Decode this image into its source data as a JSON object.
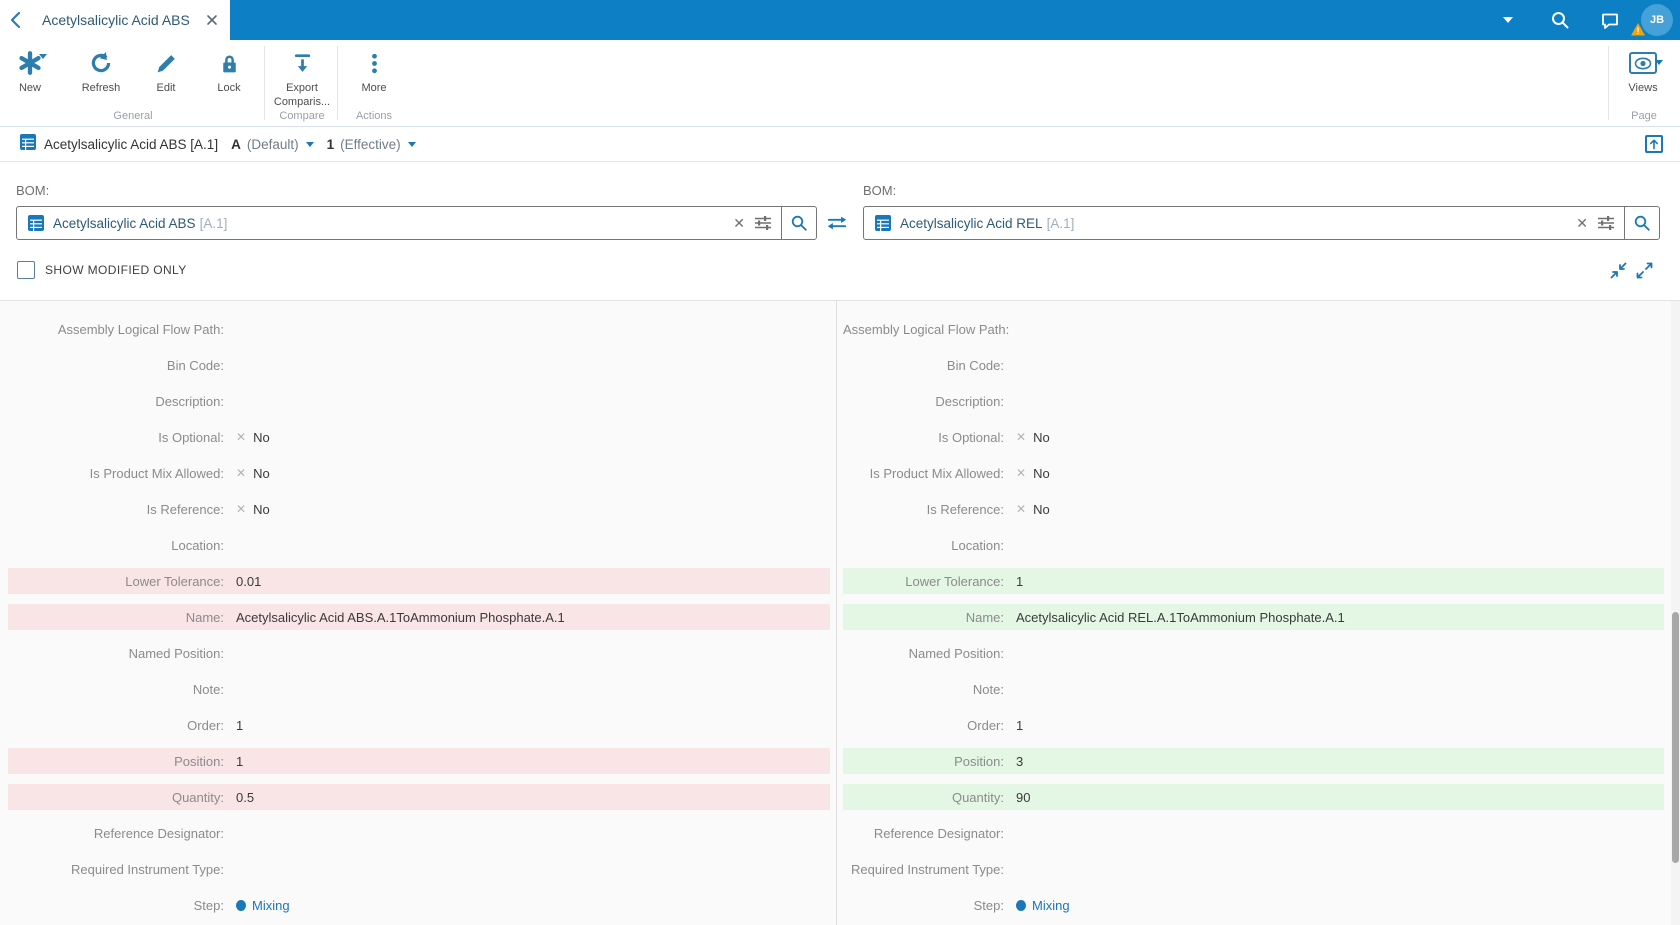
{
  "topbar": {
    "tab_title": "Acetylsalicylic Acid ABS",
    "avatar_initials": "JB",
    "warning_badge": "!"
  },
  "ribbon": {
    "buttons": {
      "new": "New",
      "refresh": "Refresh",
      "edit": "Edit",
      "lock": "Lock",
      "export_line1": "Export",
      "export_line2": "Comparis...",
      "more": "More",
      "views": "Views"
    },
    "groups": {
      "general": "General",
      "compare": "Compare",
      "actions": "Actions",
      "page": "Page"
    }
  },
  "breadcrumb": {
    "title": "Acetylsalicylic Acid ABS [A.1]",
    "revision": "A",
    "revision_note": "(Default)",
    "generation": "1",
    "generation_note": "(Effective)"
  },
  "bom": {
    "left_label": "BOM:",
    "right_label": "BOM:",
    "left_value": "Acetylsalicylic Acid ABS",
    "left_rev": "[A.1]",
    "right_value": "Acetylsalicylic Acid REL",
    "right_rev": "[A.1]"
  },
  "controls": {
    "show_modified_label": "SHOW MODIFIED ONLY"
  },
  "compare": {
    "rows": [
      {
        "label": "Assembly Logical Flow Path",
        "type": "text",
        "left": "",
        "right": "",
        "changed": false
      },
      {
        "label": "Bin Code",
        "type": "text",
        "left": "",
        "right": "",
        "changed": false
      },
      {
        "label": "Description",
        "type": "text",
        "left": "",
        "right": "",
        "changed": false
      },
      {
        "label": "Is Optional",
        "type": "bool",
        "left": "No",
        "right": "No",
        "changed": false
      },
      {
        "label": "Is Product Mix Allowed",
        "type": "bool",
        "left": "No",
        "right": "No",
        "changed": false
      },
      {
        "label": "Is Reference",
        "type": "bool",
        "left": "No",
        "right": "No",
        "changed": false
      },
      {
        "label": "Location",
        "type": "text",
        "left": "",
        "right": "",
        "changed": false
      },
      {
        "label": "Lower Tolerance",
        "type": "text",
        "left": "0.01",
        "right": "1",
        "changed": true
      },
      {
        "label": "Name",
        "type": "text",
        "left": "Acetylsalicylic Acid ABS.A.1ToAmmonium Phosphate.A.1",
        "right": "Acetylsalicylic Acid REL.A.1ToAmmonium Phosphate.A.1",
        "changed": true
      },
      {
        "label": "Named Position",
        "type": "text",
        "left": "",
        "right": "",
        "changed": false
      },
      {
        "label": "Note",
        "type": "text",
        "left": "",
        "right": "",
        "changed": false
      },
      {
        "label": "Order",
        "type": "text",
        "left": "1",
        "right": "1",
        "changed": false
      },
      {
        "label": "Position",
        "type": "text",
        "left": "1",
        "right": "3",
        "changed": true
      },
      {
        "label": "Quantity",
        "type": "text",
        "left": "0.5",
        "right": "90",
        "changed": true
      },
      {
        "label": "Reference Designator",
        "type": "text",
        "left": "",
        "right": "",
        "changed": false
      },
      {
        "label": "Required Instrument Type",
        "type": "text",
        "left": "",
        "right": "",
        "changed": false
      },
      {
        "label": "Step",
        "type": "step",
        "left": "Mixing",
        "right": "Mixing",
        "changed": false
      }
    ]
  },
  "colors": {
    "topbar_blue": "#0d7fc4",
    "accent_blue": "#1878b8",
    "icon_blue": "#2d7dad",
    "removed_bg": "#f9e4e6",
    "added_bg": "#e4f7e5",
    "panel_bg": "#fafafa",
    "warning_amber": "#f0a30a"
  }
}
